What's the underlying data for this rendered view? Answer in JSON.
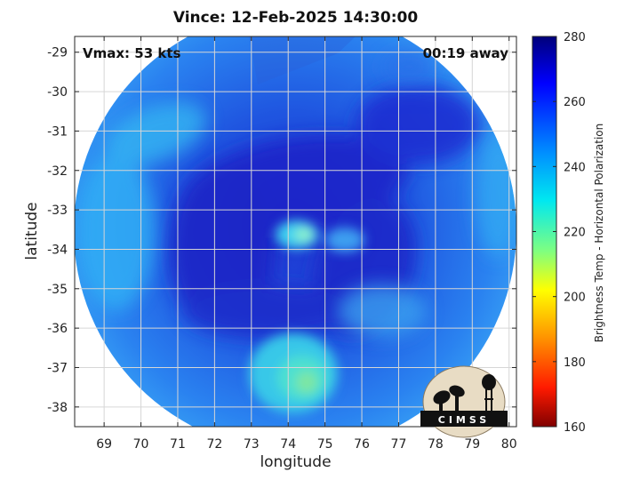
{
  "title": "Vince: 12-Feb-2025 14:30:00",
  "vmax_label": "Vmax: 53 kts",
  "time_label": "00:19 away",
  "logo_text": "CIMSS",
  "colorbar": {
    "label": "Brightness Temp - Horizontal Polarization",
    "ticks": [
      280,
      260,
      240,
      220,
      200,
      180,
      160
    ],
    "range": [
      160,
      280
    ]
  },
  "chart_data": {
    "type": "heatmap",
    "xlabel": "longitude",
    "ylabel": "latitude",
    "xlim": [
      68.2,
      80.2
    ],
    "ylim": [
      -38.5,
      -28.6
    ],
    "x_ticks": [
      69,
      70,
      71,
      72,
      73,
      74,
      75,
      76,
      77,
      78,
      79,
      80
    ],
    "y_ticks": [
      -29,
      -30,
      -31,
      -32,
      -33,
      -34,
      -35,
      -36,
      -37,
      -38
    ],
    "grid": true,
    "colormap": "jet",
    "background_color": "#2a7bf0",
    "center_lon": 74.1,
    "center_lat": -33.7
  }
}
